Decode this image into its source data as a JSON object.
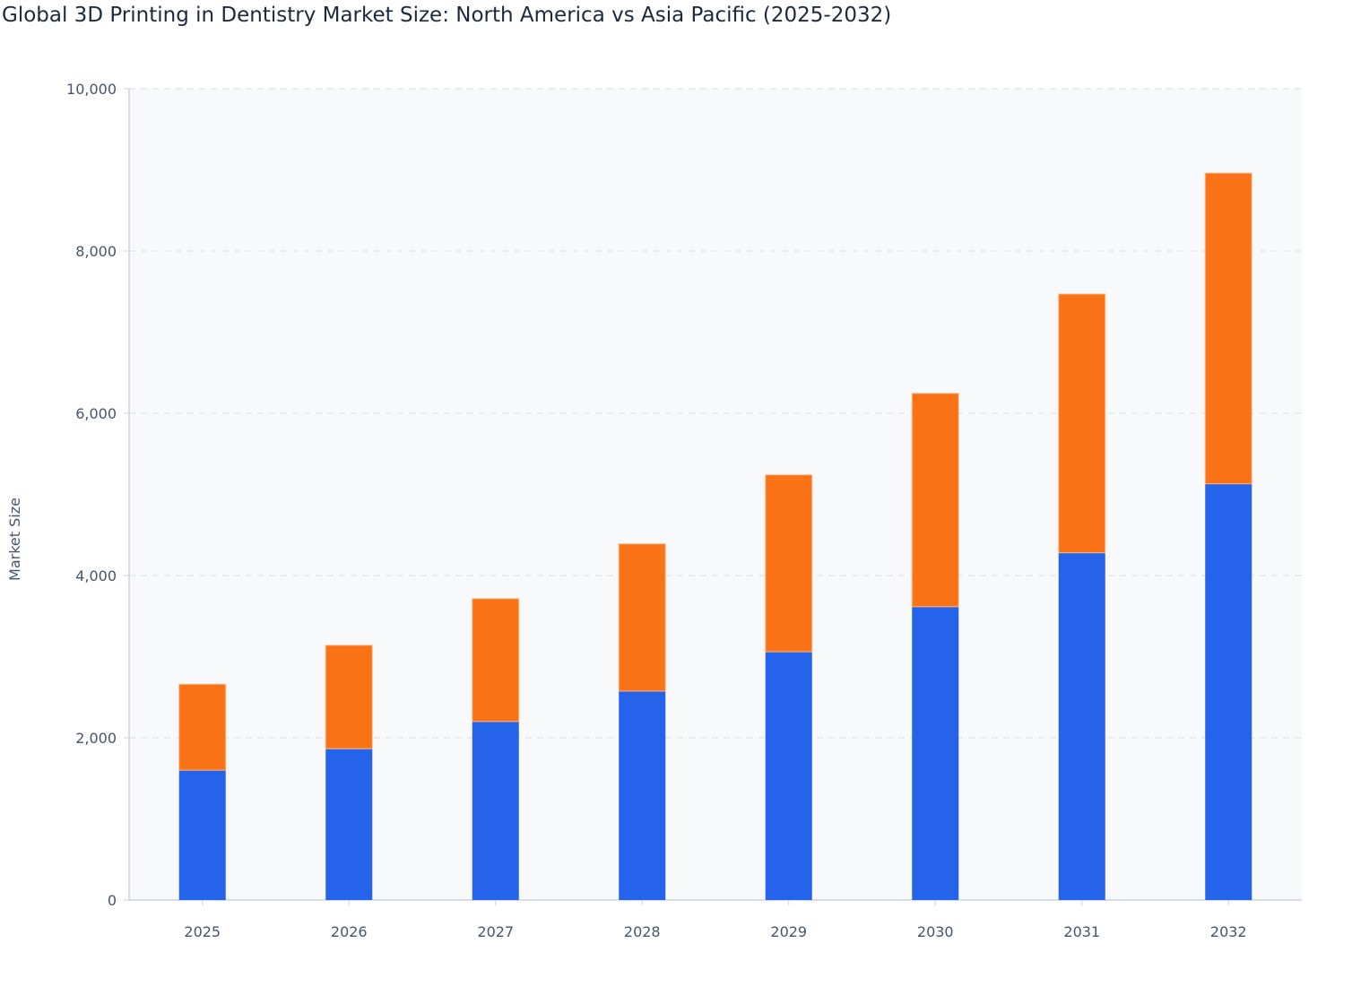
{
  "chart_data": {
    "type": "bar",
    "stacked": true,
    "title": "Global 3D Printing in Dentistry Market Size: North America vs Asia Pacific (2025-2032)",
    "xlabel": "",
    "ylabel": "Market Size",
    "ylim": [
      0,
      10000
    ],
    "yticks": [
      0,
      2000,
      4000,
      6000,
      8000,
      10000
    ],
    "ytick_labels": [
      "0",
      "2,000",
      "4,000",
      "6,000",
      "8,000",
      "10,000"
    ],
    "grid": true,
    "legend": "none",
    "categories": [
      "2025",
      "2026",
      "2027",
      "2028",
      "2029",
      "2030",
      "2031",
      "2032"
    ],
    "series": [
      {
        "color": "#2563eb",
        "values": [
          1600,
          1865,
          2200,
          2575,
          3060,
          3615,
          4280,
          5130
        ]
      },
      {
        "color": "#f97316",
        "values": [
          1060,
          1275,
          1515,
          1815,
          2180,
          2630,
          3190,
          3830
        ]
      }
    ]
  }
}
